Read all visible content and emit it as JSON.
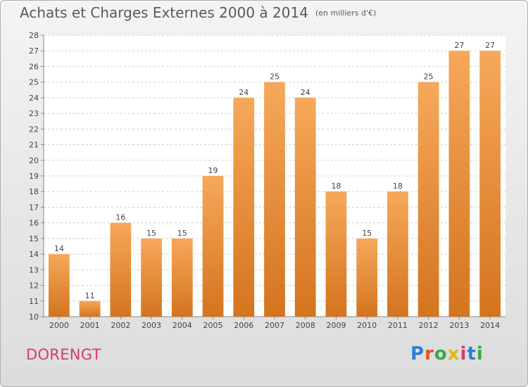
{
  "header": {
    "title": "Achats et Charges Externes 2000 à 2014",
    "unit": "(en milliers d'€)"
  },
  "footer": {
    "place": "DORENGT",
    "brand_letters": [
      "P",
      "r",
      "o",
      "x",
      "i",
      "t",
      "i"
    ],
    "brand_colors": [
      "#2d7fd3",
      "#e8541e",
      "#3aa847",
      "#e0b81c",
      "#d53a7a",
      "#2d7fd3",
      "#3aa847"
    ]
  },
  "colors": {
    "bar_top": "#f6a85a",
    "bar_bottom": "#d4741f",
    "grid": "#cfcfcf",
    "text": "#444444"
  },
  "chart_data": {
    "type": "bar",
    "categories": [
      "2000",
      "2001",
      "2002",
      "2003",
      "2004",
      "2005",
      "2006",
      "2007",
      "2008",
      "2009",
      "2010",
      "2011",
      "2012",
      "2013",
      "2014"
    ],
    "values": [
      14,
      11,
      16,
      15,
      15,
      19,
      24,
      25,
      24,
      18,
      15,
      18,
      25,
      27,
      27
    ],
    "data_labels": [
      "14",
      "11",
      "16",
      "15",
      "15",
      "19",
      "24",
      "25",
      "24",
      "18",
      "15",
      "18",
      "25",
      "27",
      "27"
    ],
    "title": "Achats et Charges Externes 2000 à 2014",
    "ylim": [
      10,
      28
    ],
    "yticks": [
      10,
      11,
      12,
      13,
      14,
      15,
      16,
      17,
      18,
      19,
      20,
      21,
      22,
      23,
      24,
      25,
      26,
      27,
      28
    ],
    "grid": true,
    "legend": "none"
  }
}
